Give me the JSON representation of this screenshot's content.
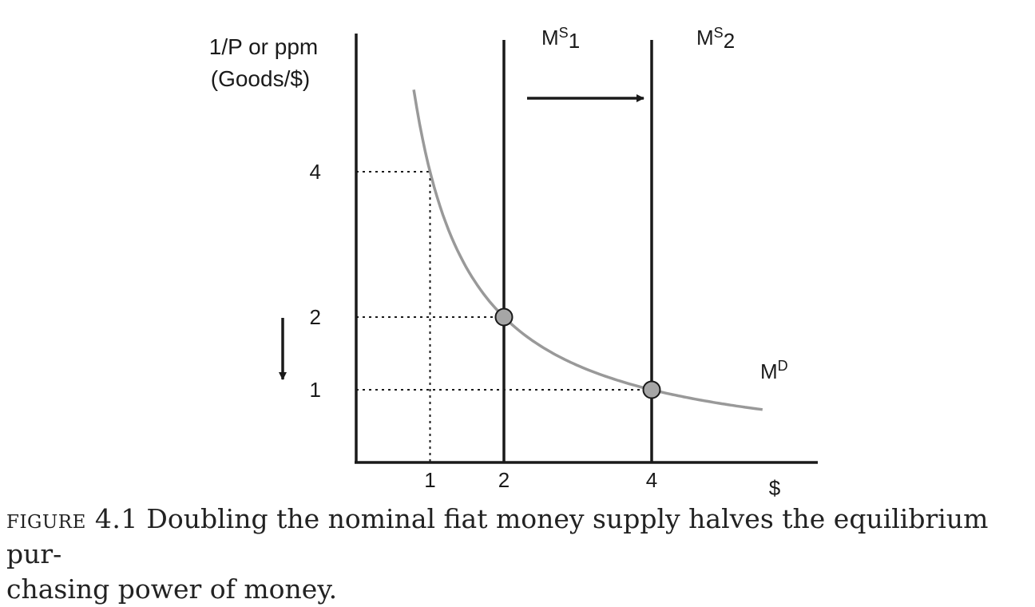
{
  "chart_data": {
    "type": "line",
    "ylabel_line1": "1/P or ppm",
    "ylabel_line2": "(Goods/$)",
    "xlabel": "$",
    "x_ticks": [
      1,
      2,
      4
    ],
    "y_ticks": [
      1,
      2,
      4
    ],
    "xlim": [
      0,
      5.88
    ],
    "ylim": [
      0,
      5.9
    ],
    "demand_curve": {
      "base": "M",
      "superscript": "D",
      "relation": "y = 4 / x",
      "x_range": [
        0.78,
        5.5
      ]
    },
    "supply_lines": [
      {
        "base": "M",
        "superscript": "S",
        "subscript": "1",
        "x": 2
      },
      {
        "base": "M",
        "superscript": "S",
        "subscript": "2",
        "x": 4
      }
    ],
    "equilibria": [
      {
        "x": 2,
        "y": 2
      },
      {
        "x": 4,
        "y": 1
      }
    ],
    "reference_lines": [
      {
        "x": 1,
        "y": 4
      },
      {
        "x": 2,
        "y": 2
      },
      {
        "x": 4,
        "y": 1
      }
    ],
    "annotations": {
      "shift_arrow": "right",
      "price_arrow": "down"
    },
    "colors": {
      "axis": "#1a1a1a",
      "demand": "#999999",
      "point_fill": "#a6a6a6"
    }
  },
  "caption": {
    "label": "figure 4.1",
    "text": "Doubling the nominal fiat money supply halves the equilibrium pur-",
    "text2": "chasing power of money."
  }
}
